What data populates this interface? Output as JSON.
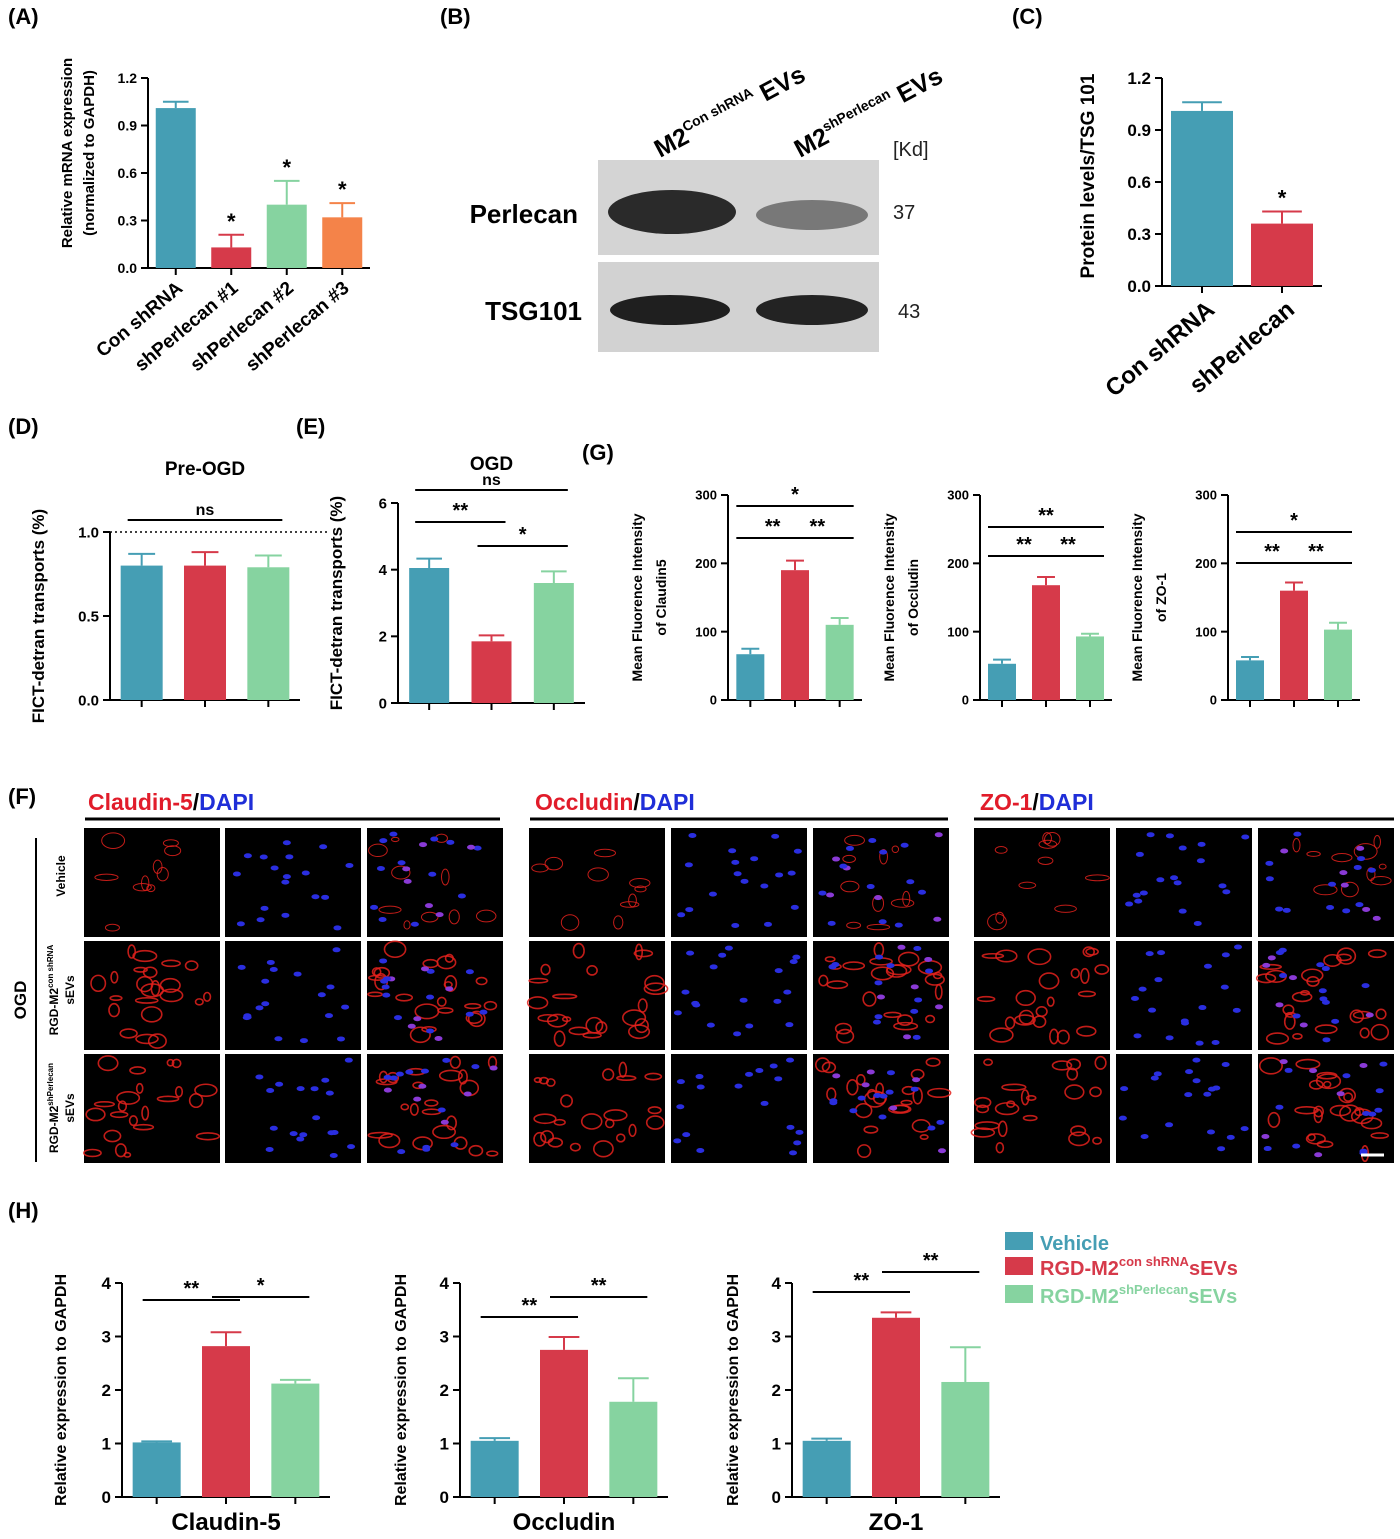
{
  "colors": {
    "blue": "#459eb4",
    "red": "#d63a4a",
    "green": "#86d3a0",
    "orange": "#f48349",
    "text_red": "#e11c2a",
    "text_blue": "#1f2ed8"
  },
  "panels": {
    "A": "(A)",
    "B": "(B)",
    "C": "(C)",
    "D": "(D)",
    "E": "(E)",
    "F": "(F)",
    "G": "(G)",
    "H": "(H)"
  },
  "chart_data": [
    {
      "id": "A",
      "type": "bar",
      "ylabel_lines": [
        "Relative mRNA expression",
        "(normalized to GAPDH)"
      ],
      "ylim": [
        0,
        1.2
      ],
      "yticks": [
        "0.0",
        "0.3",
        "0.6",
        "0.9",
        "1.2"
      ],
      "categories": [
        "Con shRNA",
        "shPerlecan #1",
        "shPerlecan #2",
        "shPerlecan #3"
      ],
      "values": [
        1.01,
        0.13,
        0.4,
        0.32
      ],
      "errors": [
        0.04,
        0.08,
        0.15,
        0.09
      ],
      "colors": [
        "#459eb4",
        "#d63a4a",
        "#86d3a0",
        "#f48349"
      ],
      "bar_labels": [
        "",
        "*",
        "*",
        "*"
      ]
    },
    {
      "id": "C",
      "type": "bar",
      "ylabel_lines": [
        "Protein levels/TSG 101"
      ],
      "ylim": [
        0,
        1.2
      ],
      "yticks": [
        "0.0",
        "0.3",
        "0.6",
        "0.9",
        "1.2"
      ],
      "categories": [
        "Con shRNA",
        "shPerlecan"
      ],
      "values": [
        1.01,
        0.36
      ],
      "errors": [
        0.05,
        0.07
      ],
      "colors": [
        "#459eb4",
        "#d63a4a"
      ],
      "bar_labels": [
        "",
        "*"
      ]
    },
    {
      "id": "D",
      "type": "bar",
      "title": "Pre-OGD",
      "ylabel_lines": [
        "FICT-detran transports (%)"
      ],
      "ylim": [
        0,
        1.0
      ],
      "yticks": [
        "0.0",
        "0.5",
        "1.0"
      ],
      "reference_line": 1.0,
      "values": [
        0.8,
        0.8,
        0.79
      ],
      "errors": [
        0.07,
        0.08,
        0.07
      ],
      "colors": [
        "#459eb4",
        "#d63a4a",
        "#86d3a0"
      ],
      "brackets": [
        {
          "from": 0,
          "to": 2,
          "label": "ns"
        }
      ]
    },
    {
      "id": "E",
      "type": "bar",
      "title": "OGD",
      "ylabel_lines": [
        "FICT-detran transports (%)"
      ],
      "ylim": [
        0,
        6
      ],
      "yticks": [
        "0",
        "2",
        "4",
        "6"
      ],
      "values": [
        4.05,
        1.85,
        3.6
      ],
      "errors": [
        0.28,
        0.18,
        0.35
      ],
      "colors": [
        "#459eb4",
        "#d63a4a",
        "#86d3a0"
      ],
      "brackets": [
        {
          "from": 0,
          "to": 2,
          "label": "ns"
        },
        {
          "from": 0,
          "to": 1,
          "label": "**"
        },
        {
          "from": 1,
          "to": 2,
          "label": "*"
        }
      ]
    },
    {
      "id": "G1",
      "type": "bar",
      "ylabel_lines": [
        "Mean Fluorence Intensity",
        "of Claudin5"
      ],
      "ylim": [
        0,
        300
      ],
      "yticks": [
        "0",
        "100",
        "200",
        "300"
      ],
      "values": [
        67,
        190,
        110
      ],
      "errors": [
        8,
        14,
        10
      ],
      "colors": [
        "#459eb4",
        "#d63a4a",
        "#86d3a0"
      ],
      "brackets": [
        {
          "from": 0,
          "to": 2,
          "label": "*"
        },
        {
          "from": 0,
          "to": 1,
          "label": "**"
        },
        {
          "from": 1,
          "to": 2,
          "label": "**"
        }
      ]
    },
    {
      "id": "G2",
      "type": "bar",
      "ylabel_lines": [
        "Mean Fluorence Intensity",
        "of Occludin"
      ],
      "ylim": [
        0,
        300
      ],
      "yticks": [
        "0",
        "100",
        "200",
        "300"
      ],
      "values": [
        53,
        168,
        93
      ],
      "errors": [
        6,
        12,
        4
      ],
      "colors": [
        "#459eb4",
        "#d63a4a",
        "#86d3a0"
      ],
      "brackets": [
        {
          "from": 0,
          "to": 2,
          "label": "**"
        },
        {
          "from": 0,
          "to": 1,
          "label": "**"
        },
        {
          "from": 1,
          "to": 2,
          "label": "**"
        }
      ]
    },
    {
      "id": "G3",
      "type": "bar",
      "ylabel_lines": [
        "Mean Fluorence Intensity",
        "of ZO-1"
      ],
      "ylim": [
        0,
        300
      ],
      "yticks": [
        "0",
        "100",
        "200",
        "300"
      ],
      "values": [
        58,
        160,
        103
      ],
      "errors": [
        5,
        12,
        10
      ],
      "colors": [
        "#459eb4",
        "#d63a4a",
        "#86d3a0"
      ],
      "brackets": [
        {
          "from": 0,
          "to": 2,
          "label": "*"
        },
        {
          "from": 0,
          "to": 1,
          "label": "**"
        },
        {
          "from": 1,
          "to": 2,
          "label": "**"
        }
      ]
    },
    {
      "id": "H1",
      "type": "bar",
      "ylabel_lines": [
        "Relative expression to GAPDH"
      ],
      "xlabel": "Claudin-5",
      "ylim": [
        0,
        4
      ],
      "yticks": [
        "0",
        "1",
        "2",
        "3",
        "4"
      ],
      "values": [
        1.02,
        2.82,
        2.12
      ],
      "errors": [
        0.02,
        0.26,
        0.07
      ],
      "colors": [
        "#459eb4",
        "#d63a4a",
        "#86d3a0"
      ],
      "brackets": [
        {
          "from": 0,
          "to": 1,
          "label": "**"
        },
        {
          "from": 1,
          "to": 2,
          "label": "*"
        }
      ]
    },
    {
      "id": "H2",
      "type": "bar",
      "ylabel_lines": [
        "Relative expression to GAPDH"
      ],
      "xlabel": "Occludin",
      "ylim": [
        0,
        4
      ],
      "yticks": [
        "0",
        "1",
        "2",
        "3",
        "4"
      ],
      "values": [
        1.05,
        2.75,
        1.78
      ],
      "errors": [
        0.05,
        0.24,
        0.44
      ],
      "colors": [
        "#459eb4",
        "#d63a4a",
        "#86d3a0"
      ],
      "brackets": [
        {
          "from": 0,
          "to": 1,
          "label": "**"
        },
        {
          "from": 1,
          "to": 2,
          "label": "**"
        }
      ]
    },
    {
      "id": "H3",
      "type": "bar",
      "ylabel_lines": [
        "Relative expression to GAPDH"
      ],
      "xlabel": "ZO-1",
      "ylim": [
        0,
        4
      ],
      "yticks": [
        "0",
        "1",
        "2",
        "3",
        "4"
      ],
      "values": [
        1.05,
        3.35,
        2.15
      ],
      "errors": [
        0.04,
        0.1,
        0.65
      ],
      "colors": [
        "#459eb4",
        "#d63a4a",
        "#86d3a0"
      ],
      "brackets": [
        {
          "from": 0,
          "to": 1,
          "label": "**"
        },
        {
          "from": 1,
          "to": 2,
          "label": "**"
        }
      ]
    }
  ],
  "legend": {
    "items": [
      {
        "color": "#459eb4",
        "text_color": "#459eb4",
        "label": "Vehicle",
        "sup": "",
        "suffix": ""
      },
      {
        "color": "#d63a4a",
        "text_color": "#d63a4a",
        "label": "RGD-M2",
        "sup": "con shRNA",
        "suffix": "sEVs"
      },
      {
        "color": "#86d3a0",
        "text_color": "#86d3a0",
        "label": "RGD-M2",
        "sup": "shPerlecan",
        "suffix": "sEVs"
      }
    ]
  },
  "blot": {
    "lane1": {
      "base": "M2",
      "sup": "Con shRNA",
      "suffix": " EVs"
    },
    "lane2": {
      "base": "M2",
      "sup": "shPerlecan",
      "suffix": " EVs"
    },
    "kd_label": "[Kd]",
    "rows": [
      {
        "name": "Perlecan",
        "kd": "37"
      },
      {
        "name": "TSG101",
        "kd": "43"
      }
    ]
  },
  "micro": {
    "headers": [
      {
        "marker": "Claudin-5",
        "sep": "/",
        "dapi": "DAPI"
      },
      {
        "marker": "Occludin",
        "sep": "/",
        "dapi": "DAPI"
      },
      {
        "marker": "ZO-1",
        "sep": "/",
        "dapi": "DAPI"
      }
    ],
    "group_label": "OGD",
    "rows": [
      {
        "line1": "Vehicle",
        "base": "",
        "sup": "",
        "line2": ""
      },
      {
        "line1": "",
        "base": "RGD-M2",
        "sup": "con shRNA",
        "line2": "sEVs"
      },
      {
        "line1": "",
        "base": "RGD-M2",
        "sup": "shPerlecan",
        "line2": "sEVs"
      }
    ]
  }
}
